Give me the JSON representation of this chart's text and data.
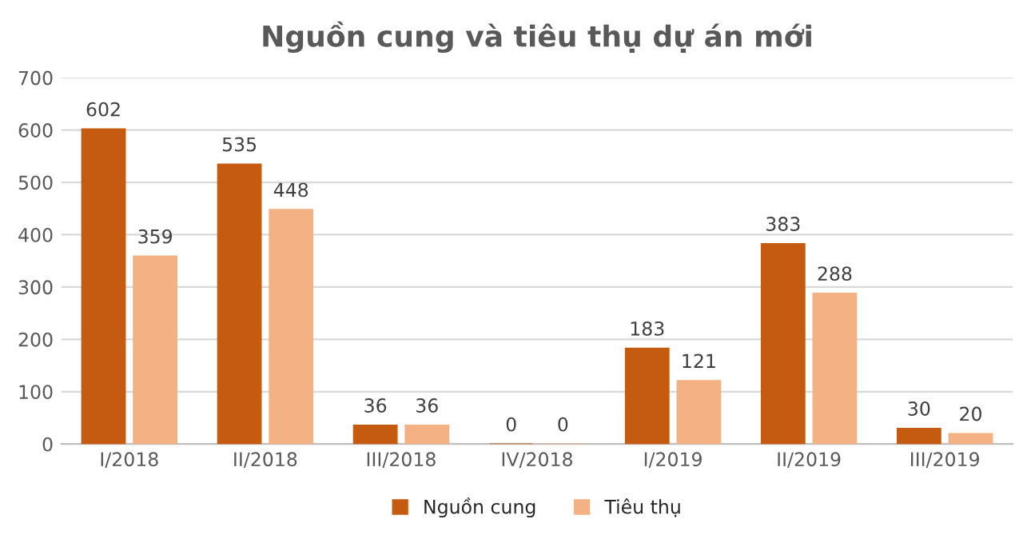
{
  "chart_data": {
    "type": "bar",
    "title": "Nguồn cung và tiêu thụ dự án mới",
    "categories": [
      "I/2018",
      "II/2018",
      "III/2018",
      "IV/2018",
      "I/2019",
      "II/2019",
      "III/2019"
    ],
    "series": [
      {
        "name": "Nguồn cung",
        "color": "#c55a11",
        "values": [
          602,
          535,
          36,
          0,
          183,
          383,
          30
        ]
      },
      {
        "name": "Tiêu thụ",
        "color": "#f4b183",
        "values": [
          359,
          448,
          36,
          0,
          121,
          288,
          20
        ]
      }
    ],
    "ylim": [
      0,
      700
    ],
    "yticks": [
      0,
      100,
      200,
      300,
      400,
      500,
      600,
      700
    ],
    "grid": "y",
    "legend": "bottom",
    "data_labels": true
  }
}
